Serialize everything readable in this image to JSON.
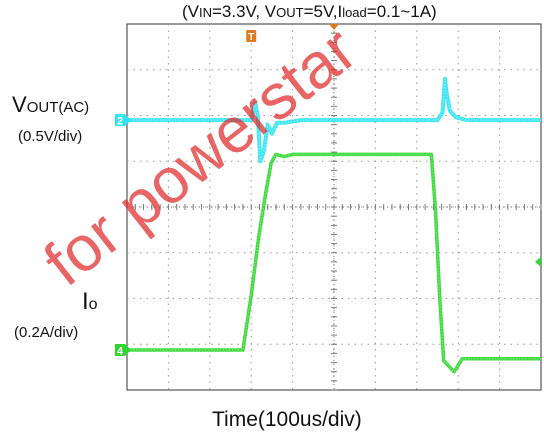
{
  "chart_data": {
    "type": "line",
    "title": {
      "open": "(V",
      "in_sub": "IN",
      "mid1": "=3.3V, V",
      "out_sub": "OUT",
      "mid2": "=5V,I",
      "load_sub": "load",
      "end": "=0.1~1A)"
    },
    "xlabel": "Time(100us/div)",
    "time_per_div_us": 100,
    "grid": true,
    "xlim": [
      0,
      1000
    ],
    "series": [
      {
        "name": "V_OUT(AC)",
        "label_main": "V",
        "label_sub": "OUT(AC)",
        "scale": "(0.5V/div)",
        "channel_marker": "2",
        "color": "#2fe3f0",
        "volts_per_div": 0.5,
        "x": [
          0,
          300,
          310,
          316,
          322,
          330,
          340,
          350,
          362,
          380,
          420,
          750,
          762,
          768,
          772,
          780,
          795,
          820,
          1000
        ],
        "y": [
          0.0,
          0.0,
          0.18,
          0.05,
          -0.45,
          -0.35,
          -0.05,
          -0.15,
          -0.03,
          -0.03,
          0.0,
          0.0,
          0.08,
          0.45,
          0.3,
          0.1,
          0.03,
          0.0,
          0.0
        ]
      },
      {
        "name": "I_o",
        "label_main": "I",
        "label_sub": "o",
        "scale": "(0.2A/div)",
        "channel_marker": "4",
        "color": "#2fd62f",
        "amps_per_div": 0.2,
        "x": [
          0,
          280,
          300,
          318,
          335,
          348,
          360,
          380,
          400,
          500,
          600,
          700,
          735,
          745,
          755,
          765,
          790,
          810,
          1000
        ],
        "y": [
          0.1,
          0.1,
          0.35,
          0.62,
          0.82,
          0.96,
          1.0,
          0.99,
          1.0,
          1.0,
          1.0,
          1.0,
          1.0,
          0.75,
          0.35,
          0.05,
          0.0,
          0.06,
          0.06
        ]
      }
    ],
    "trigger_marker": "T",
    "watermark": "for powerstar"
  }
}
